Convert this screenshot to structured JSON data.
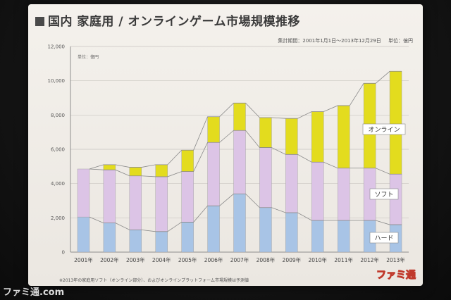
{
  "slide": {
    "title": "国内 家庭用 / オンラインゲーム市場規模推移",
    "period": "集計期間：2001年1月1日〜2013年12月29日",
    "unit": "単位：億円",
    "unit_small": "単位：億円",
    "footnote": "※2013年の家庭用ソフト（オンライン部分）、およびオンラインプラットフォーム市場規模は予測値",
    "logo": "ファミ通"
  },
  "watermark": "ファミ通.com",
  "colors": {
    "hard": "#a8c4e6",
    "soft": "#dcc4e6",
    "online": "#e3dc1e"
  },
  "chart_data": {
    "type": "bar",
    "stacked": true,
    "categories": [
      "2001年",
      "2002年",
      "2003年",
      "2004年",
      "2005年",
      "2006年",
      "2007年",
      "2008年",
      "2009年",
      "2010年",
      "2011年",
      "2012年",
      "2013年"
    ],
    "series": [
      {
        "name": "ハード",
        "values": [
          2050,
          1700,
          1300,
          1200,
          1750,
          2700,
          3400,
          2600,
          2300,
          1850,
          1850,
          1850,
          1600
        ]
      },
      {
        "name": "ソフト",
        "values": [
          2800,
          3100,
          3150,
          3200,
          2950,
          3700,
          3700,
          3500,
          3400,
          3400,
          3050,
          3050,
          2950
        ]
      },
      {
        "name": "オンライン",
        "values": [
          0,
          300,
          500,
          700,
          1250,
          1500,
          1600,
          1750,
          2100,
          2950,
          3650,
          4950,
          6000
        ]
      }
    ],
    "yticks": [
      "0",
      "2,000",
      "4,000",
      "6,000",
      "8,000",
      "10,000",
      "12,000"
    ],
    "ylim": [
      0,
      12000
    ],
    "legend": "inline-right"
  }
}
